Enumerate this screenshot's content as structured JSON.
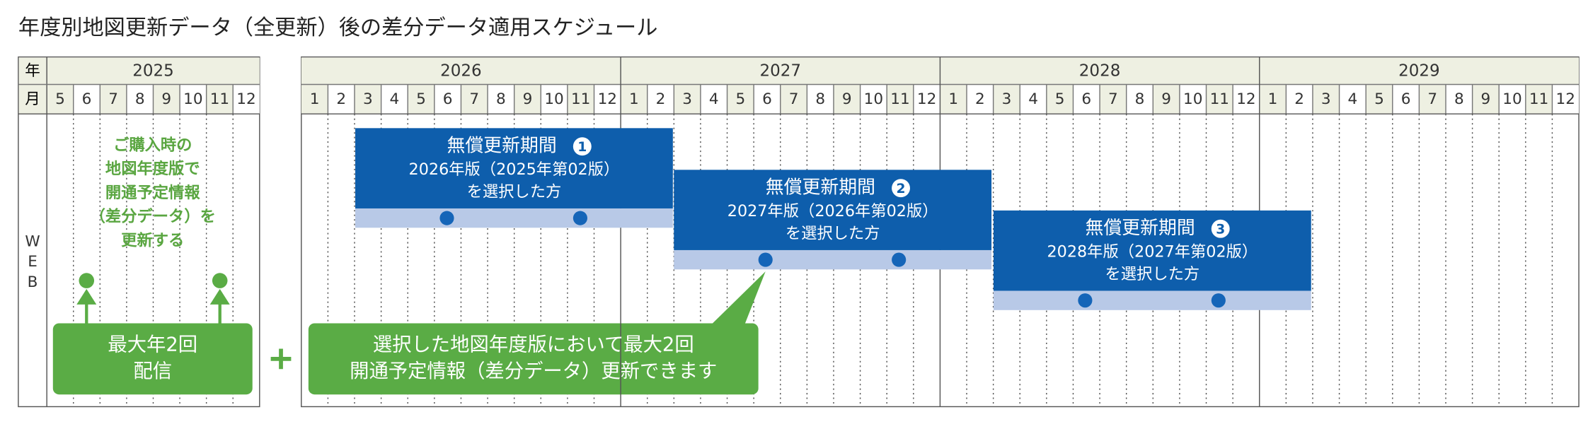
{
  "title": "年度別地図更新データ（全更新）後の差分データ適用スケジュール",
  "header": {
    "year_label": "年",
    "month_label": "月"
  },
  "left_table": {
    "year": "2025",
    "months": [
      5,
      6,
      7,
      8,
      9,
      10,
      11,
      12
    ]
  },
  "right_table": {
    "years": [
      {
        "year": "2026",
        "months": [
          1,
          2,
          3,
          4,
          5,
          6,
          7,
          8,
          9,
          10,
          11,
          12
        ]
      },
      {
        "year": "2027",
        "months": [
          1,
          2,
          3,
          4,
          5,
          6,
          7,
          8,
          9,
          10,
          11,
          12
        ]
      },
      {
        "year": "2028",
        "months": [
          1,
          2,
          3,
          4,
          5,
          6,
          7,
          8,
          9,
          10,
          11,
          12
        ]
      },
      {
        "year": "2029",
        "months": [
          1,
          2,
          3,
          4,
          5,
          6,
          7,
          8,
          9,
          10,
          11,
          12
        ]
      }
    ]
  },
  "row_label": [
    "W",
    "E",
    "B"
  ],
  "purchase_note": [
    "ご購入時の",
    "地図年度版で",
    "開通予定情報",
    "（差分データ）を",
    "更新する"
  ],
  "delivery_box": [
    "最大年2回",
    "配信"
  ],
  "callout": [
    "選択した地図年度版において最大2回",
    "開通予定情報（差分データ）更新できます"
  ],
  "periods": [
    {
      "title": "無償更新期間",
      "number": "1",
      "version": "2026年版（2025年第02版）",
      "note": "を選択した方"
    },
    {
      "title": "無償更新期間",
      "number": "2",
      "version": "2027年版（2026年第02版）",
      "note": "を選択した方"
    },
    {
      "title": "無償更新期間",
      "number": "3",
      "version": "2028年版（2027年第02版）",
      "note": "を選択した方"
    }
  ]
}
